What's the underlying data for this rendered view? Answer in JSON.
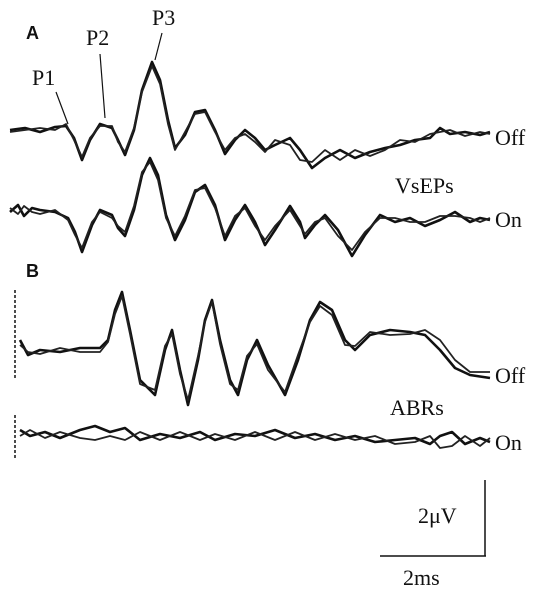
{
  "panels": [
    {
      "label": "A",
      "peaks": [
        "P1",
        "P2",
        "P3"
      ],
      "name": "VsEPs",
      "conditions": [
        "Off",
        "On"
      ]
    },
    {
      "label": "B",
      "name": "ABRs",
      "conditions": [
        "Off",
        "On"
      ]
    }
  ],
  "scale_bar": {
    "amplitude": "2μV",
    "time": "2ms"
  }
}
